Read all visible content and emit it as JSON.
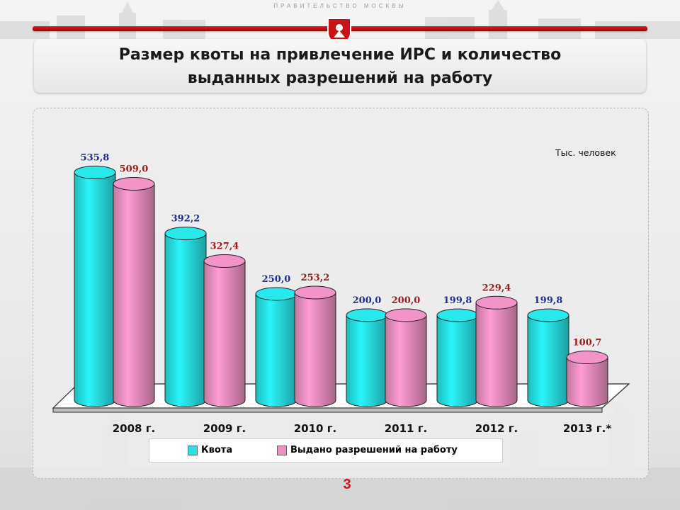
{
  "header": {
    "government_caption": "ПРАВИТЕЛЬСТВО МОСКВЫ",
    "title_line1": "Размер квоты на привлечение ИРС и количество",
    "title_line2": "выданных разрешений на работу"
  },
  "page_number": "3",
  "colors": {
    "quota_fill": "#26e3e6",
    "permits_fill": "#ef90c4",
    "quota_label": "#1f2f8f",
    "permits_label": "#9b1b1b",
    "accent_red": "#c81414"
  },
  "chart_data": {
    "type": "bar",
    "style": "3d-cylinder",
    "unit_label": "Тыс. человек",
    "categories": [
      "2008 г.",
      "2009 г.",
      "2010 г.",
      "2011 г.",
      "2012 г.",
      "2013 г.*"
    ],
    "series": [
      {
        "name": "Квота",
        "values": [
          535.8,
          392.2,
          250.0,
          200.0,
          199.8,
          199.8
        ],
        "labels": [
          "535,8",
          "392,2",
          "250,0",
          "200,0",
          "199,8",
          "199,8"
        ]
      },
      {
        "name": "Выдано разрешений на работу",
        "values": [
          509.0,
          327.4,
          253.2,
          200.0,
          229.4,
          100.7
        ],
        "labels": [
          "509,0",
          "327,4",
          "253,2",
          "200,0",
          "229,4",
          "100,7"
        ]
      }
    ],
    "ylim": [
      0,
      560
    ],
    "grid": false,
    "legend_position": "bottom"
  }
}
